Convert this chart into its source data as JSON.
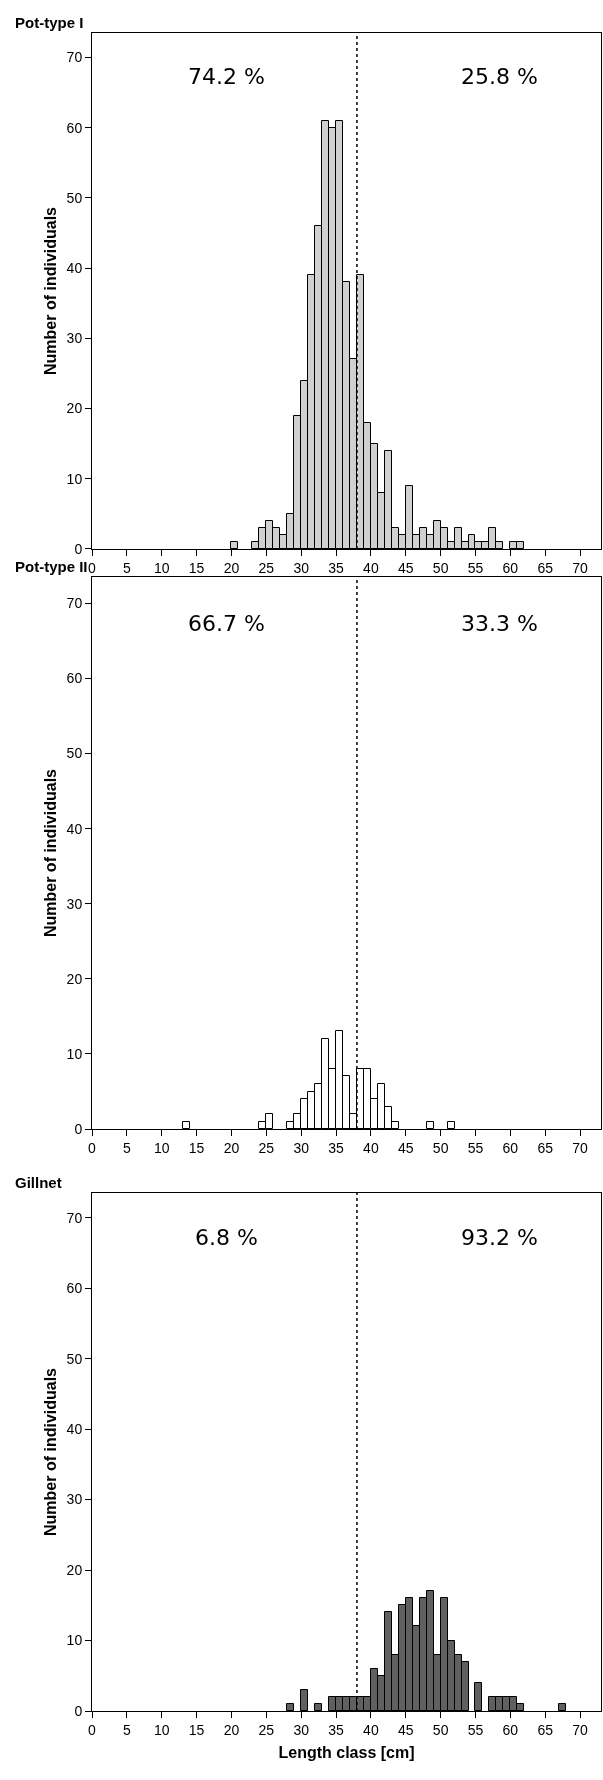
{
  "chart_data": [
    {
      "type": "histogram",
      "title": "Pot-type I",
      "ylabel": "Number of individuals",
      "color": "#d0d0d0",
      "bins": [
        20,
        21,
        22,
        23,
        24,
        25,
        26,
        27,
        28,
        29,
        30,
        31,
        32,
        33,
        34,
        35,
        36,
        37,
        38,
        39,
        40,
        41,
        42,
        43,
        44,
        45,
        46,
        47,
        48,
        49,
        50,
        51,
        52,
        53,
        54,
        55,
        56,
        57,
        58,
        59,
        60,
        61,
        62
      ],
      "values": [
        1,
        0,
        0,
        1,
        3,
        4,
        3,
        2,
        5,
        19,
        24,
        39,
        46,
        61,
        60,
        61,
        38,
        27,
        39,
        18,
        15,
        8,
        14,
        3,
        2,
        9,
        2,
        3,
        2,
        4,
        3,
        1,
        3,
        1,
        2,
        1,
        1,
        3,
        1,
        0,
        1,
        1
      ],
      "xlim": [
        0,
        73
      ],
      "ylim": [
        0,
        73.5
      ],
      "xticks": [
        0,
        5,
        10,
        15,
        20,
        25,
        30,
        35,
        40,
        45,
        50,
        55,
        60,
        65,
        70
      ],
      "yticks": [
        0,
        10,
        20,
        30,
        40,
        50,
        60,
        70
      ],
      "ref_lines": [
        {
          "axis": "x",
          "value": 38,
          "line_style": "dotted"
        }
      ],
      "annotations": [
        "74.2 %",
        "25.8 %"
      ]
    },
    {
      "type": "histogram",
      "title": "Pot-type II",
      "ylabel": "Number of individuals",
      "color": "#ffffff",
      "bins": [
        13,
        14,
        15,
        16,
        17,
        18,
        19,
        20,
        21,
        22,
        23,
        24,
        25,
        26,
        27,
        28,
        29,
        30,
        31,
        32,
        33,
        34,
        35,
        36,
        37,
        38,
        39,
        40,
        41,
        42,
        43,
        44,
        45,
        46,
        47,
        48,
        49,
        50,
        51,
        52
      ],
      "values": [
        1,
        0,
        0,
        0,
        0,
        0,
        0,
        0,
        0,
        0,
        0,
        1,
        2,
        0,
        0,
        1,
        2,
        4,
        5,
        6,
        12,
        8,
        13,
        7,
        2,
        8,
        8,
        4,
        6,
        3,
        1,
        0,
        0,
        0,
        0,
        1,
        0,
        0,
        1
      ],
      "xlim": [
        0,
        73
      ],
      "ylim": [
        0,
        73.5
      ],
      "xticks": [
        0,
        5,
        10,
        15,
        20,
        25,
        30,
        35,
        40,
        45,
        50,
        55,
        60,
        65,
        70
      ],
      "yticks": [
        0,
        10,
        20,
        30,
        40,
        50,
        60,
        70
      ],
      "ref_lines": [
        {
          "axis": "x",
          "value": 38,
          "line_style": "dotted"
        }
      ],
      "annotations": [
        "66.7 %",
        "33.3 %"
      ]
    },
    {
      "type": "histogram",
      "title": "Gillnet",
      "ylabel": "Number of individuals",
      "xlabel": "Length class [cm]",
      "color": "#606060",
      "bins": [
        28,
        29,
        30,
        31,
        32,
        33,
        34,
        35,
        36,
        37,
        38,
        39,
        40,
        41,
        42,
        43,
        44,
        45,
        46,
        47,
        48,
        49,
        50,
        51,
        52,
        53,
        54,
        55,
        56,
        57,
        58,
        59,
        60,
        61,
        62,
        63,
        64,
        65,
        66,
        67,
        68
      ],
      "values": [
        1,
        0,
        3,
        0,
        1,
        0,
        2,
        2,
        2,
        2,
        2,
        2,
        6,
        5,
        14,
        8,
        15,
        16,
        12,
        16,
        17,
        8,
        16,
        10,
        8,
        7,
        0,
        4,
        0,
        2,
        2,
        2,
        2,
        1,
        0,
        0,
        0,
        0,
        0,
        1
      ],
      "xlim": [
        0,
        73
      ],
      "ylim": [
        0,
        73.5
      ],
      "xticks": [
        0,
        5,
        10,
        15,
        20,
        25,
        30,
        35,
        40,
        45,
        50,
        55,
        60,
        65,
        70
      ],
      "yticks": [
        0,
        10,
        20,
        30,
        40,
        50,
        60,
        70
      ],
      "ref_lines": [
        {
          "axis": "x",
          "value": 38,
          "line_style": "dotted"
        }
      ],
      "annotations": [
        "6.8 %",
        "93.2 %"
      ]
    }
  ]
}
